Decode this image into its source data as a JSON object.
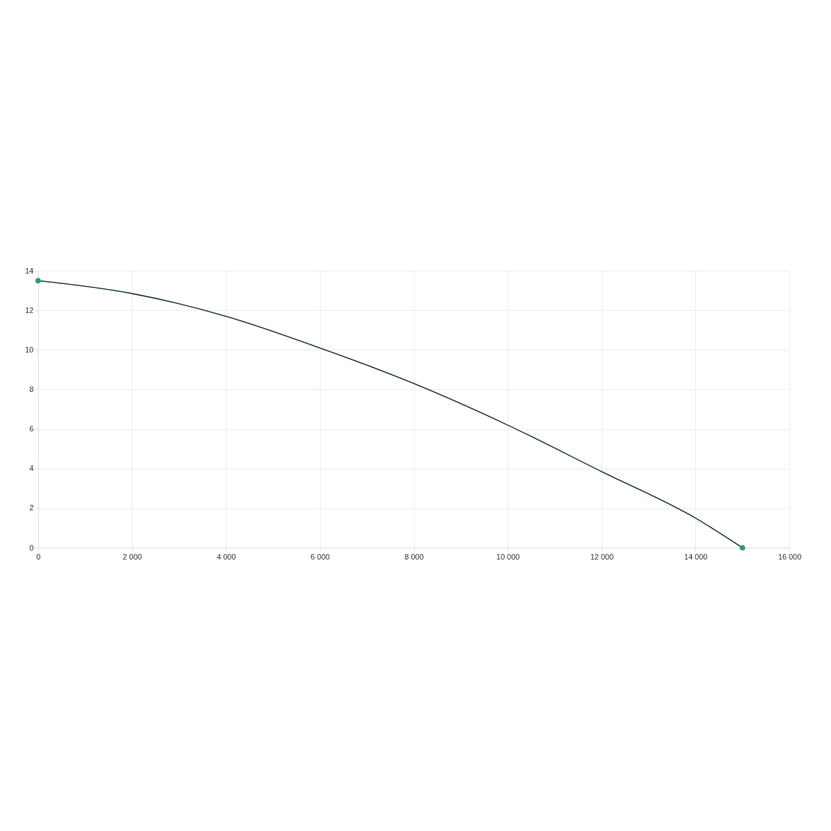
{
  "chart_data": {
    "type": "line",
    "x": [
      0,
      2000,
      4000,
      6000,
      8000,
      10000,
      12000,
      14000,
      15000
    ],
    "series": [
      {
        "color": "#1f3d3a",
        "values": [
          13.5,
          12.85,
          11.7,
          10.1,
          8.3,
          6.2,
          3.85,
          1.5,
          0
        ]
      },
      {
        "type": "scatter",
        "color": "#2a9d64",
        "x": [
          0,
          15000
        ],
        "values": [
          13.5,
          0
        ],
        "marker": "circle"
      }
    ],
    "xlim": [
      0,
      16000
    ],
    "xticks": [
      0,
      {
        "value": 2000,
        "label": "2 000"
      },
      {
        "value": 4000,
        "label": "4 000"
      },
      {
        "value": 6000,
        "label": "6 000"
      },
      {
        "value": 8000,
        "label": "8 000"
      },
      {
        "value": 10000,
        "label": "10 000"
      },
      {
        "value": 12000,
        "label": "12 000"
      },
      {
        "value": 14000,
        "label": "14 000"
      },
      {
        "value": 16000,
        "label": "16 000"
      }
    ],
    "ylim": [
      0,
      14
    ],
    "yticks": [
      0,
      2,
      4,
      6,
      8,
      10,
      12,
      14
    ],
    "grid": true,
    "marker": "none",
    "line_style": "solid"
  }
}
